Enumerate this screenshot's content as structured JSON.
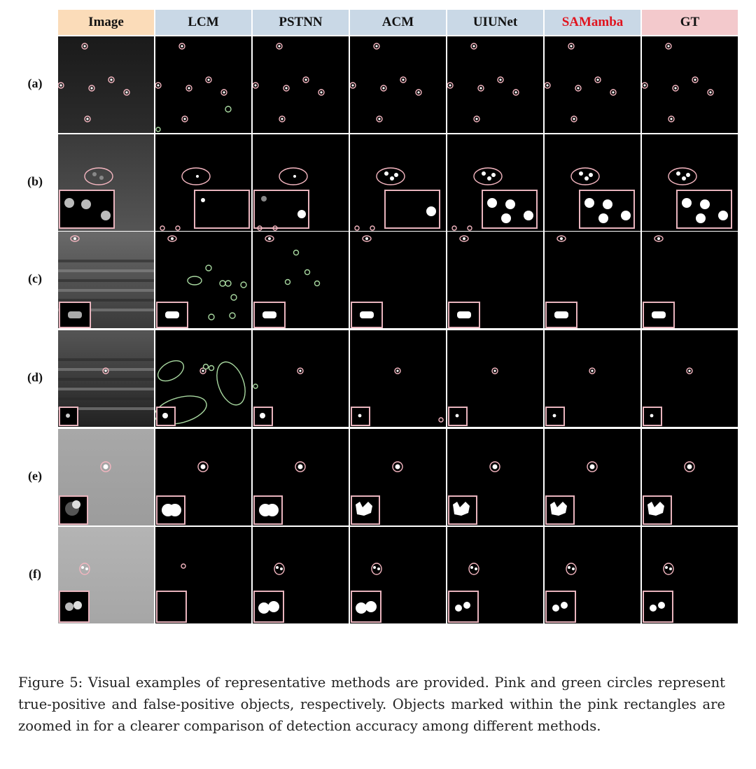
{
  "figure": {
    "columns": [
      {
        "key": "image",
        "label": "Image",
        "bg": "#fbdcb9",
        "color": "#111111"
      },
      {
        "key": "lcm",
        "label": "LCM",
        "bg": "#c9d8e6",
        "color": "#111111"
      },
      {
        "key": "pstnn",
        "label": "PSTNN",
        "bg": "#c9d8e6",
        "color": "#111111"
      },
      {
        "key": "acm",
        "label": "ACM",
        "bg": "#c9d8e6",
        "color": "#111111"
      },
      {
        "key": "uiunet",
        "label": "UIUNet",
        "bg": "#c9d8e6",
        "color": "#111111"
      },
      {
        "key": "samamba",
        "label": "SAMamba",
        "bg": "#c9d8e6",
        "color": "#e0141e"
      },
      {
        "key": "gt",
        "label": "GT",
        "bg": "#f3c9cc",
        "color": "#111111"
      }
    ],
    "rows": [
      {
        "label": "(a)"
      },
      {
        "label": "(b)"
      },
      {
        "label": "(c)"
      },
      {
        "label": "(d)"
      },
      {
        "label": "(e)"
      },
      {
        "label": "(f)"
      }
    ],
    "marker_colors": {
      "true_positive": "#f4b6c0",
      "false_positive": "#a8d8a0",
      "zoom_box": "#e8b4bd"
    }
  },
  "caption": {
    "text": "Figure 5: Visual examples of representative methods are provided. Pink and green circles represent true-positive and false-positive objects, respectively. Objects marked within the pink rectangles are zoomed in for a clearer comparison of detection accuracy among different methods."
  }
}
